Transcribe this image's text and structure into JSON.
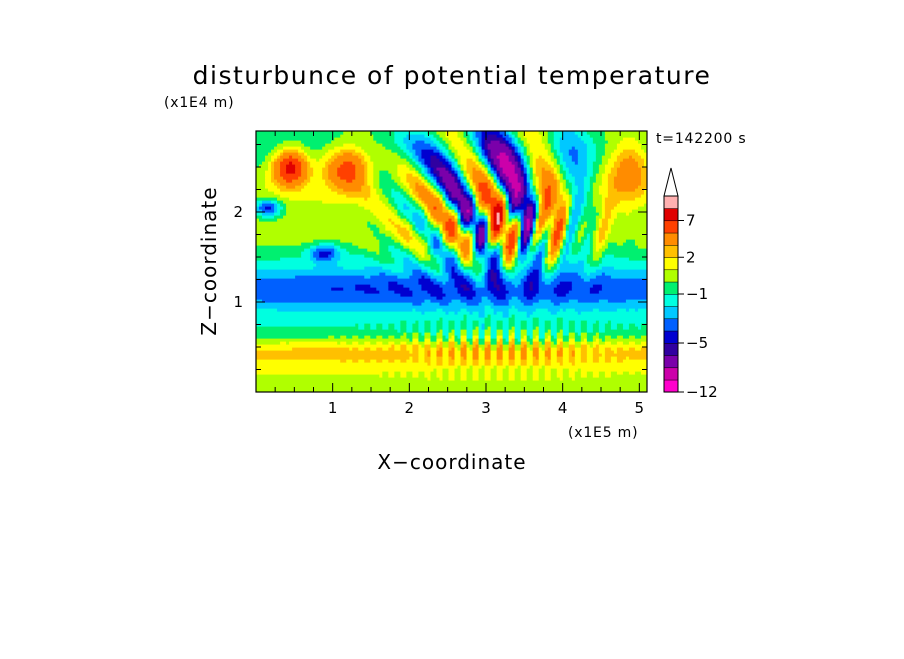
{
  "chart_data": {
    "type": "heatmap",
    "title": "disturbunce of potential temperature",
    "xlabel": "X−coordinate",
    "ylabel": "Z−coordinate",
    "x_unit": "(x1E5 m)",
    "y_unit": "(x1E4 m)",
    "time_label": "t=142200 s",
    "xlim": [
      0,
      5.1
    ],
    "ylim": [
      0,
      2.9
    ],
    "x_ticks": [
      {
        "value": 1,
        "label": "1"
      },
      {
        "value": 2,
        "label": "2"
      },
      {
        "value": 3,
        "label": "3"
      },
      {
        "value": 4,
        "label": "4"
      },
      {
        "value": 5,
        "label": "5"
      }
    ],
    "y_ticks": [
      {
        "value": 1,
        "label": "1"
      },
      {
        "value": 2,
        "label": "2"
      }
    ],
    "colorbar": {
      "levels": [
        -12,
        -10,
        -8,
        -6,
        -5,
        -4,
        -3,
        -2,
        -1,
        0,
        1,
        2,
        3,
        5,
        7,
        9,
        11
      ],
      "colors": [
        "#ff00cc",
        "#cc00aa",
        "#7a00aa",
        "#3000a0",
        "#0000d0",
        "#0060ff",
        "#00c8ff",
        "#00ffe0",
        "#00f070",
        "#b0ff00",
        "#ffff00",
        "#ffc000",
        "#ff8c00",
        "#ff4000",
        "#e00000",
        "#ffb0b0"
      ],
      "extend": "max",
      "labels": [
        {
          "value": -12,
          "label": "−12"
        },
        {
          "value": -5,
          "label": "−5"
        },
        {
          "value": -1,
          "label": "−1"
        },
        {
          "value": 2,
          "label": "2"
        },
        {
          "value": 7,
          "label": "7"
        }
      ]
    },
    "grid": false
  }
}
